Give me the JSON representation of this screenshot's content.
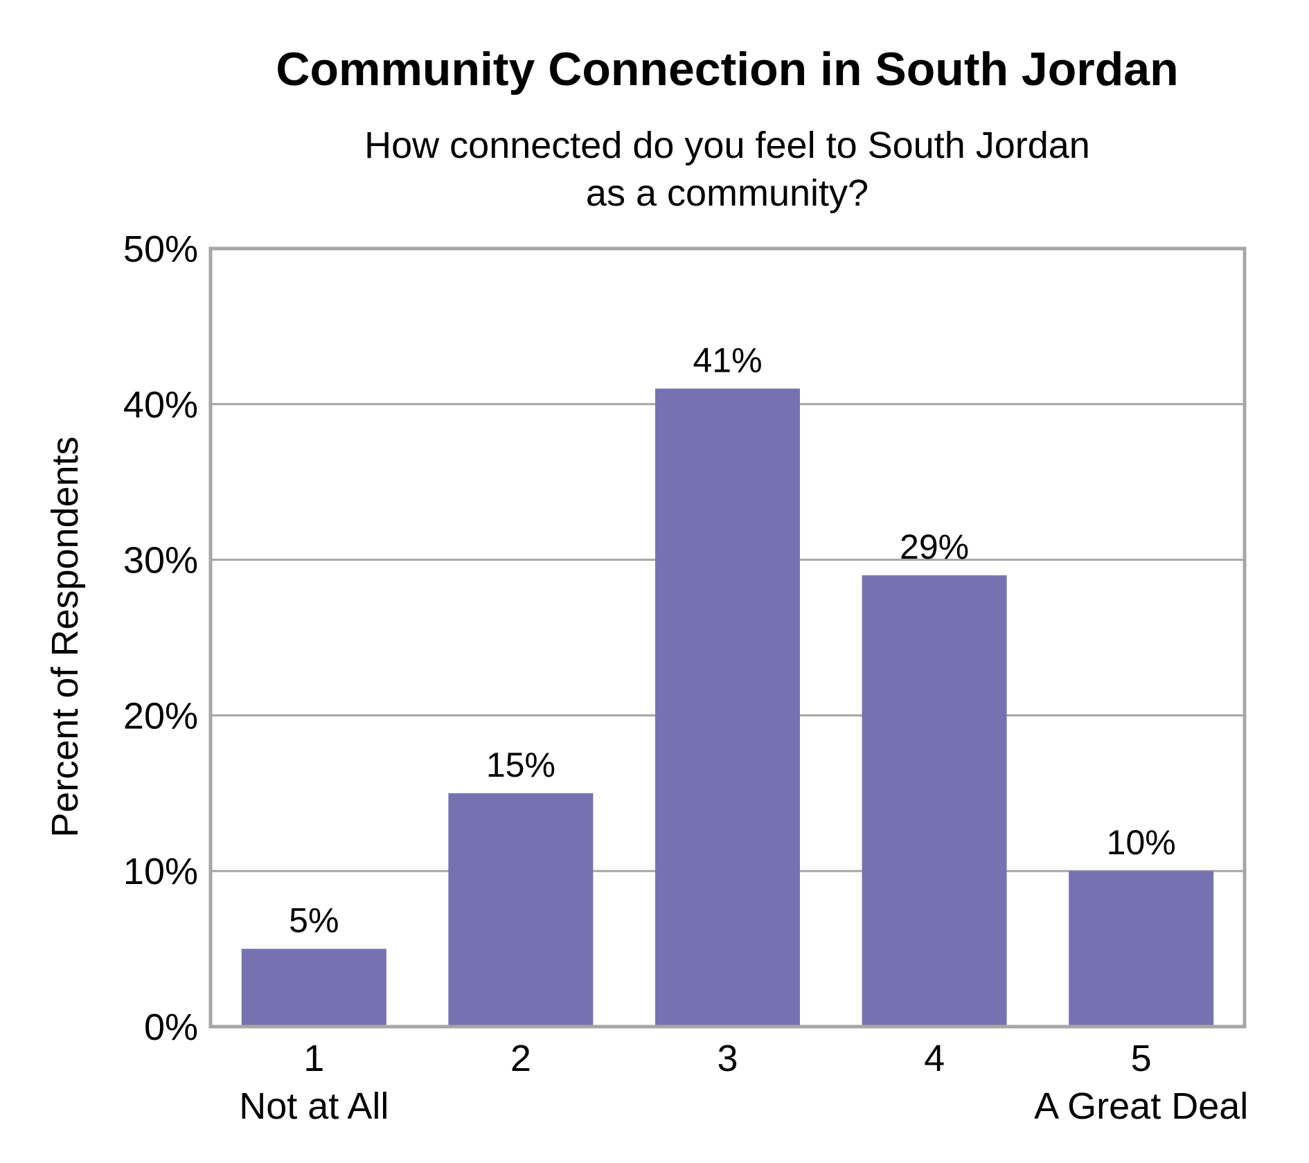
{
  "chart_data": {
    "type": "bar",
    "title": "Community Connection in South Jordan",
    "subtitle_lines": [
      "How connected do you feel to South Jordan",
      "as a community?"
    ],
    "ylabel": "Percent of Respondents",
    "xlabel": "",
    "categories": [
      "1",
      "2",
      "3",
      "4",
      "5"
    ],
    "category_sublabels": [
      "Not at All",
      "",
      "",
      "",
      "A Great Deal"
    ],
    "values": [
      5,
      15,
      41,
      29,
      10
    ],
    "data_labels": [
      "5%",
      "15%",
      "41%",
      "29%",
      "10%"
    ],
    "ylim": [
      0,
      50
    ],
    "yticks": [
      0,
      10,
      20,
      30,
      40,
      50
    ],
    "ytick_labels": [
      "0%",
      "10%",
      "20%",
      "30%",
      "40%",
      "50%"
    ],
    "grid": true,
    "legend": "none",
    "bar_color": "#7672b2",
    "grid_color": "#a6a6a6",
    "frame_color": "#a6a6a6"
  }
}
